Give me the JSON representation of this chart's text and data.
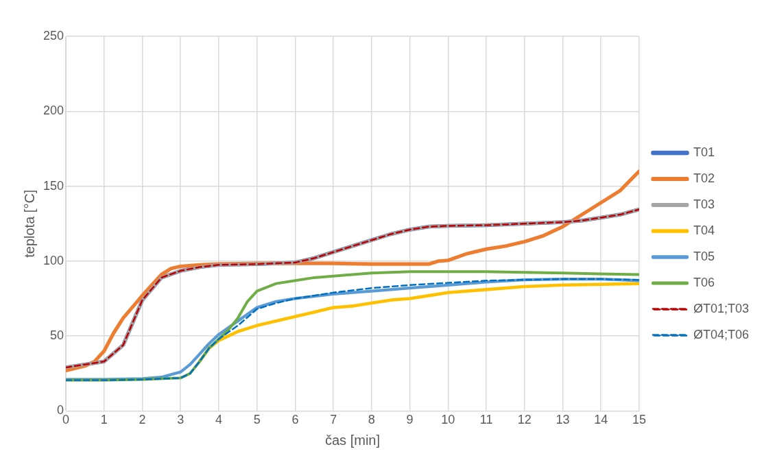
{
  "chart_data": {
    "type": "line",
    "xlabel": "čas [min]",
    "ylabel": "teplota [°C]",
    "xlim": [
      0,
      15
    ],
    "xticks": [
      0,
      1,
      2,
      3,
      4,
      5,
      6,
      7,
      8,
      9,
      10,
      11,
      12,
      13,
      14,
      15
    ],
    "ylim": [
      0,
      250
    ],
    "yticks": [
      0,
      50,
      100,
      150,
      200,
      250
    ],
    "grid": true,
    "legend": "right",
    "marker": "none",
    "series": [
      {
        "name": "T01",
        "color": "#4472c4",
        "x": [
          0,
          0.5,
          1,
          1.5,
          2,
          2.5,
          3,
          3.5,
          4,
          5,
          6,
          6.5,
          7,
          7.5,
          8,
          8.5,
          9,
          9.5,
          10,
          11,
          12,
          13,
          13.5,
          14,
          14.5,
          15
        ],
        "values": [
          29,
          31,
          33,
          44,
          74,
          89,
          93.5,
          96,
          97.5,
          98,
          99,
          102,
          106,
          110,
          114,
          118,
          121,
          123,
          123.5,
          124,
          125,
          126,
          127,
          129,
          131,
          134.5
        ]
      },
      {
        "name": "T02",
        "color": "#ed7d31",
        "x": [
          0,
          0.5,
          0.75,
          1,
          1.25,
          1.5,
          2,
          2.5,
          2.75,
          3,
          3.5,
          4,
          5,
          6,
          7,
          8,
          9,
          9.5,
          9.75,
          10,
          10.5,
          11,
          11.5,
          12,
          12.5,
          13,
          13.5,
          14,
          14.5,
          15
        ],
        "values": [
          27,
          30,
          33,
          40,
          52,
          62,
          77,
          91,
          95,
          96.5,
          97.5,
          98,
          98.5,
          98.5,
          98.5,
          98,
          98,
          98,
          100,
          100.5,
          105,
          108,
          110,
          113,
          117,
          123,
          131,
          139,
          147,
          160
        ]
      },
      {
        "name": "T03",
        "color": "#a5a5a5",
        "x": [
          0,
          0.5,
          1,
          1.5,
          2,
          2.5,
          3,
          3.5,
          4,
          5,
          6,
          6.5,
          7,
          7.5,
          8,
          8.5,
          9,
          9.5,
          10,
          11,
          12,
          13,
          13.5,
          14,
          14.5,
          15
        ],
        "values": [
          29,
          31,
          33,
          44,
          74,
          89,
          93.5,
          96,
          97.5,
          98,
          99,
          102,
          106,
          110,
          114,
          118,
          121,
          123,
          123.5,
          124,
          125,
          126,
          127,
          129,
          131,
          134.5
        ]
      },
      {
        "name": "T04",
        "color": "#ffc000",
        "x": [
          3.5,
          3.75,
          4,
          4.5,
          5,
          5.5,
          6,
          6.5,
          7,
          7.5,
          8,
          8.5,
          9,
          9.5,
          10,
          11,
          12,
          13,
          14,
          15
        ],
        "values": [
          33,
          42,
          47,
          53,
          57,
          60,
          63,
          66,
          69,
          70,
          72,
          74,
          75,
          77,
          79,
          81,
          83,
          84,
          84.5,
          85
        ]
      },
      {
        "name": "T05",
        "color": "#5b9bd5",
        "x": [
          0,
          1,
          2,
          2.5,
          3,
          3.25,
          3.5,
          3.75,
          4,
          4.5,
          5,
          5.5,
          6,
          7,
          8,
          9,
          10,
          11,
          12,
          13,
          14,
          15
        ],
        "values": [
          21,
          21,
          21.5,
          22.5,
          26,
          31,
          38,
          45,
          51,
          60,
          69,
          73,
          75,
          78,
          80,
          82,
          84,
          86,
          87.5,
          88,
          88,
          87
        ]
      },
      {
        "name": "T06",
        "color": "#70ad47",
        "x": [
          0,
          1,
          2,
          3,
          3.25,
          3.5,
          3.75,
          4,
          4.25,
          4.5,
          4.75,
          5,
          5.5,
          6,
          6.5,
          7,
          7.5,
          8,
          8.5,
          9,
          10,
          11,
          12,
          13,
          14,
          15
        ],
        "values": [
          20.5,
          20.5,
          21,
          22,
          25,
          33,
          42,
          48,
          54,
          62,
          73,
          80,
          85,
          87,
          89,
          90,
          91,
          92,
          92.5,
          93,
          93,
          93,
          92.5,
          92,
          91.5,
          91
        ]
      },
      {
        "name": "ØT01;T03",
        "color": "#c00000",
        "line_style": "dashed",
        "x": [
          0,
          0.5,
          1,
          1.5,
          2,
          2.5,
          3,
          3.5,
          4,
          5,
          6,
          6.5,
          7,
          7.5,
          8,
          8.5,
          9,
          9.5,
          10,
          11,
          12,
          13,
          13.5,
          14,
          14.5,
          15
        ],
        "values": [
          29,
          31,
          33,
          44,
          74,
          89,
          93.5,
          96,
          97.5,
          98,
          99,
          102,
          106,
          110,
          114,
          118,
          121,
          123,
          123.5,
          124,
          125,
          126,
          127,
          129,
          131,
          134.5
        ]
      },
      {
        "name": "ØT04;T06",
        "color": "#0070c0",
        "line_style": "dashed",
        "x": [
          0,
          1,
          2,
          3,
          3.25,
          3.5,
          3.75,
          4,
          4.5,
          5,
          5.5,
          6,
          7,
          8,
          9,
          10,
          11,
          12,
          13,
          14,
          15
        ],
        "values": [
          20.5,
          20.5,
          21,
          22,
          25,
          33,
          42,
          48,
          57,
          68,
          72,
          75,
          79,
          82,
          84,
          85.5,
          87,
          87.5,
          88,
          88,
          87.5
        ]
      }
    ]
  }
}
